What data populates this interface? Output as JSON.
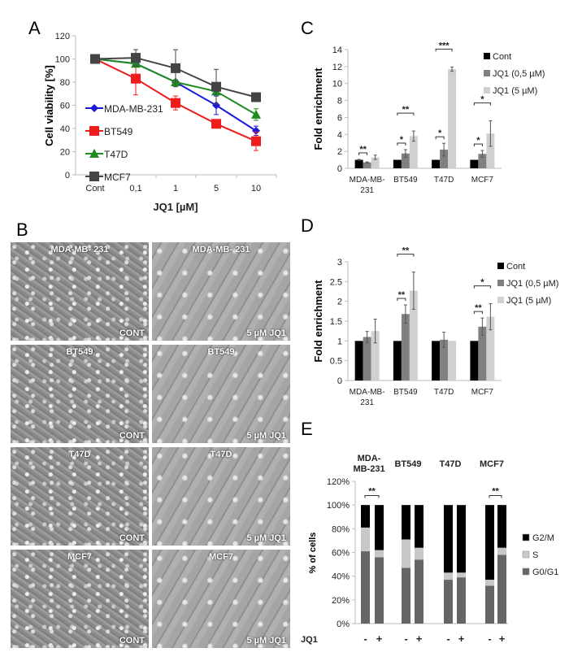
{
  "panel_labels": [
    "A",
    "B",
    "C",
    "D",
    "E"
  ],
  "micrographs": [
    {
      "cell": "MDA-MB- 231",
      "cond": "CONT"
    },
    {
      "cell": "MDA-MB- 231",
      "cond": "5 µM JQ1"
    },
    {
      "cell": "BT549",
      "cond": "CONT"
    },
    {
      "cell": "BT549",
      "cond": "5 µM JQ1"
    },
    {
      "cell": "T47D",
      "cond": "CONT"
    },
    {
      "cell": "T47D",
      "cond": "5 µM JQ1"
    },
    {
      "cell": "MCF7",
      "cond": "CONT"
    },
    {
      "cell": "MCF7",
      "cond": "5 µM JQ1"
    }
  ],
  "chart_data": [
    {
      "id": "A",
      "type": "line",
      "xlabel": "JQ1 [µM]",
      "ylabel": "Cell viability [%]",
      "ylim": [
        0,
        120
      ],
      "yticks": [
        0,
        20,
        40,
        60,
        80,
        100,
        120
      ],
      "categories": [
        "Cont",
        "0,1",
        "1",
        "5",
        "10"
      ],
      "legend": "left",
      "series": [
        {
          "name": "MDA-MB-231",
          "color": "#1a1adb",
          "marker": "diamond",
          "values": [
            100,
            96,
            80,
            60,
            38
          ],
          "err": [
            0,
            3,
            2,
            8,
            4
          ]
        },
        {
          "name": "BT549",
          "color": "#ee1c1c",
          "marker": "square",
          "values": [
            100,
            83,
            62,
            44,
            29
          ],
          "err": [
            0,
            14,
            6,
            2,
            8
          ]
        },
        {
          "name": "T47D",
          "color": "#1e8c1e",
          "marker": "triangle",
          "values": [
            100,
            96,
            80,
            72,
            52
          ],
          "err": [
            0,
            3,
            2,
            3,
            5
          ]
        },
        {
          "name": "MCF7",
          "color": "#444444",
          "marker": "square",
          "values": [
            100,
            101,
            92,
            76,
            67
          ],
          "err": [
            0,
            7,
            16,
            15,
            2
          ]
        }
      ]
    },
    {
      "id": "C",
      "type": "bar",
      "ylabel": "Fold enrichment",
      "ylim": [
        0,
        14
      ],
      "yticks": [
        0,
        2,
        4,
        6,
        8,
        10,
        12,
        14
      ],
      "categories": [
        "MDA-MB-231",
        "BT549",
        "T47D",
        "MCF7"
      ],
      "legend": "right",
      "series": [
        {
          "name": "Cont",
          "color": "#000000",
          "values": [
            1,
            1,
            1,
            1
          ],
          "err": [
            0.05,
            0,
            0,
            0
          ]
        },
        {
          "name": "JQ1 (0,5 µM)",
          "color": "#808080",
          "values": [
            0.7,
            1.75,
            2.2,
            1.7
          ],
          "err": [
            0.05,
            0.45,
            0.75,
            0.4
          ]
        },
        {
          "name": "JQ1 (5 µM)",
          "color": "#d0d0d0",
          "values": [
            1.3,
            3.8,
            11.7,
            4.1
          ],
          "err": [
            0.25,
            0.6,
            0.25,
            1.5
          ]
        }
      ],
      "significance": [
        {
          "cat": 0,
          "from": 0,
          "to": 1,
          "label": "**"
        },
        {
          "cat": 1,
          "from": 0,
          "to": 1,
          "label": "*"
        },
        {
          "cat": 1,
          "from": 0,
          "to": 2,
          "label": "**"
        },
        {
          "cat": 2,
          "from": 0,
          "to": 1,
          "label": "*"
        },
        {
          "cat": 2,
          "from": 0,
          "to": 2,
          "label": "***"
        },
        {
          "cat": 3,
          "from": 0,
          "to": 1,
          "label": "*"
        },
        {
          "cat": 3,
          "from": 0,
          "to": 2,
          "label": "*"
        }
      ]
    },
    {
      "id": "D",
      "type": "bar",
      "ylabel": "Fold enrichment",
      "ylim": [
        0,
        3
      ],
      "yticks": [
        0,
        0.5,
        1,
        1.5,
        2,
        2.5,
        3
      ],
      "categories": [
        "MDA-MB-231",
        "BT549",
        "T47D",
        "MCF7"
      ],
      "legend": "right",
      "series": [
        {
          "name": "Cont",
          "color": "#000000",
          "values": [
            1,
            1,
            1,
            1
          ],
          "err": [
            0,
            0,
            0,
            0
          ]
        },
        {
          "name": "JQ1 (0,5 µM)",
          "color": "#808080",
          "values": [
            1.1,
            1.68,
            1.03,
            1.36
          ],
          "err": [
            0.14,
            0.23,
            0.19,
            0.22
          ]
        },
        {
          "name": "JQ1 (5 µM)",
          "color": "#d0d0d0",
          "values": [
            1.25,
            2.27,
            1.0,
            1.61
          ],
          "err": [
            0.3,
            0.47,
            0,
            0.33
          ]
        }
      ],
      "significance": [
        {
          "cat": 1,
          "from": 0,
          "to": 1,
          "label": "**"
        },
        {
          "cat": 1,
          "from": 0,
          "to": 2,
          "label": "**"
        },
        {
          "cat": 3,
          "from": 0,
          "to": 1,
          "label": "**"
        },
        {
          "cat": 3,
          "from": 0,
          "to": 2,
          "label": "*"
        }
      ]
    },
    {
      "id": "E",
      "type": "bar",
      "stacked": true,
      "ylabel": "% of cells",
      "ylim": [
        0,
        120
      ],
      "yticks": [
        "0%",
        "20%",
        "40%",
        "60%",
        "80%",
        "100%",
        "120%"
      ],
      "groups": [
        "MDA-MB-231",
        "BT549",
        "T47D",
        "MCF7"
      ],
      "row_label": "JQ1",
      "bar_labels": [
        "-",
        "+"
      ],
      "legend": "right",
      "series": [
        {
          "name": "G0/G1",
          "color": "#666666",
          "values": [
            61,
            56,
            47,
            54,
            37,
            39,
            32,
            58
          ]
        },
        {
          "name": "S",
          "color": "#c8c8c8",
          "values": [
            20,
            6,
            24,
            10,
            6,
            4,
            5,
            6
          ]
        },
        {
          "name": "G2/M",
          "color": "#000000",
          "values": [
            19,
            38,
            29,
            36,
            57,
            57,
            63,
            36
          ]
        }
      ],
      "significance": [
        {
          "group": 0,
          "label": "**"
        },
        {
          "group": 3,
          "label": "**"
        }
      ]
    }
  ]
}
